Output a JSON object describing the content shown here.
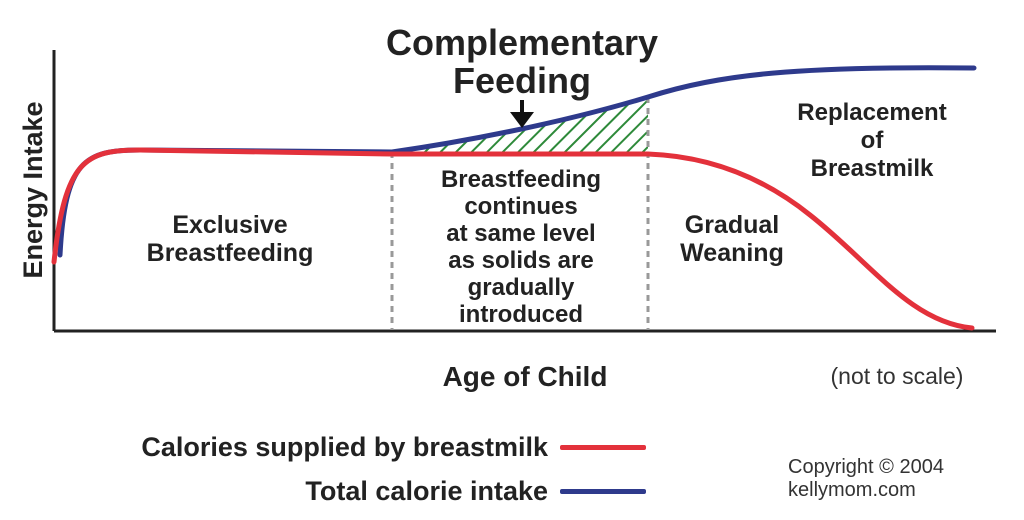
{
  "colors": {
    "breastmilk": "#e3313b",
    "total": "#2e3a8c",
    "complementary": "#22a03a",
    "hatch": "#2e8a3a",
    "axis": "#222222",
    "divider": "#999999"
  },
  "diagram": {
    "y_axis_label": "Energy Intake",
    "x_axis_label": "Age of Child",
    "scale_note": "(not to scale)",
    "complementary_title": [
      "Complementary",
      "Feeding"
    ],
    "regions": {
      "exclusive": [
        "Exclusive",
        "Breastfeeding"
      ],
      "continues": [
        "Breastfeeding",
        "continues",
        "at same level",
        "as solids are",
        "gradually",
        "introduced"
      ],
      "weaning": [
        "Gradual",
        "Weaning"
      ],
      "replacement": [
        "Replacement",
        "of",
        "Breastmilk"
      ]
    },
    "arrow_icon": "down-arrow-icon"
  },
  "legend": {
    "breastmilk_label": "Calories supplied by breastmilk",
    "total_label": "Total calorie intake"
  },
  "copyright": {
    "line1": "Copyright © 2004",
    "line2": "kellymom.com"
  }
}
